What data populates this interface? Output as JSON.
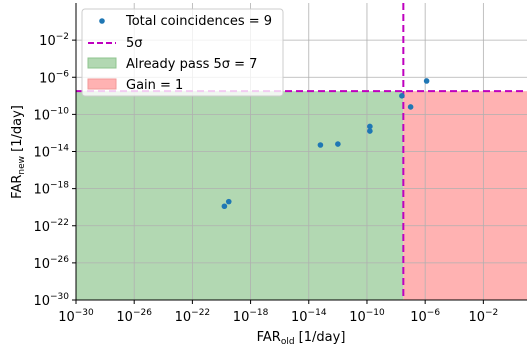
{
  "chart_data": {
    "type": "scatter",
    "x_scale": "log",
    "y_scale": "log",
    "xlim_exp": [
      -30,
      1
    ],
    "ylim_exp": [
      -30,
      2
    ],
    "grid": true,
    "legend_position": "top-left",
    "xlabel_main": "FAR",
    "xlabel_sub": "old",
    "xlabel_unit": " [1/day]",
    "ylabel_main": "FAR",
    "ylabel_sub": "new",
    "ylabel_unit": " [1/day]",
    "x_ticks_exp": [
      -30,
      -26,
      -22,
      -18,
      -14,
      -10,
      -6,
      -2
    ],
    "y_ticks_exp": [
      -30,
      -26,
      -22,
      -18,
      -14,
      -10,
      -6,
      -2
    ],
    "tick_base": "10",
    "threshold_exp": -7.5,
    "legend": {
      "points": "Total coincidences = 9",
      "threshold_line": "5σ",
      "green_region": "Already pass 5σ = 7",
      "red_region": "Gain = 1"
    },
    "series": [
      {
        "points": [
          {
            "x_exp": -19.8,
            "y_exp": -19.9
          },
          {
            "x_exp": -19.5,
            "y_exp": -19.4
          },
          {
            "x_exp": -13.2,
            "y_exp": -13.3
          },
          {
            "x_exp": -12.0,
            "y_exp": -13.2
          },
          {
            "x_exp": -9.8,
            "y_exp": -11.3
          },
          {
            "x_exp": -9.8,
            "y_exp": -11.8
          },
          {
            "x_exp": -7.6,
            "y_exp": -8.0
          },
          {
            "x_exp": -7.0,
            "y_exp": -9.2
          },
          {
            "x_exp": -5.9,
            "y_exp": -6.4
          }
        ]
      }
    ],
    "colors": {
      "points": "#1f77b4",
      "threshold": "#bf00bf",
      "green_fill": "#b2d8b2",
      "red_fill": "#ffb2b2",
      "grid": "#b0b0b0"
    }
  }
}
